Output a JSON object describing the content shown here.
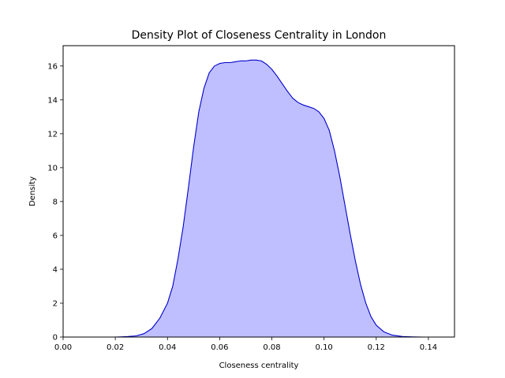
{
  "chart_data": {
    "type": "area",
    "title": "Density Plot of Closeness Centrality in London",
    "xlabel": "Closeness centrality",
    "ylabel": "Density",
    "xlim": [
      0.0,
      0.15
    ],
    "ylim": [
      0,
      17.2
    ],
    "xticks": [
      0.0,
      0.02,
      0.04,
      0.06,
      0.08,
      0.1,
      0.12,
      0.14
    ],
    "xtick_labels": [
      "0.00",
      "0.02",
      "0.04",
      "0.06",
      "0.08",
      "0.10",
      "0.12",
      "0.14"
    ],
    "yticks": [
      0,
      2,
      4,
      6,
      8,
      10,
      12,
      14,
      16
    ],
    "ytick_labels": [
      "0",
      "2",
      "4",
      "6",
      "8",
      "10",
      "12",
      "14",
      "16"
    ],
    "grid": false,
    "series": [
      {
        "line_color": "#0000cc",
        "fill_color": "#bfbfff",
        "x": [
          0.0197,
          0.022,
          0.025,
          0.028,
          0.031,
          0.034,
          0.037,
          0.04,
          0.042,
          0.044,
          0.046,
          0.048,
          0.05,
          0.052,
          0.054,
          0.056,
          0.058,
          0.06,
          0.062,
          0.064,
          0.066,
          0.068,
          0.07,
          0.072,
          0.074,
          0.076,
          0.078,
          0.08,
          0.082,
          0.084,
          0.086,
          0.088,
          0.09,
          0.092,
          0.094,
          0.096,
          0.098,
          0.1,
          0.102,
          0.104,
          0.106,
          0.108,
          0.11,
          0.112,
          0.114,
          0.116,
          0.118,
          0.12,
          0.123,
          0.126,
          0.13,
          0.134,
          0.138,
          0.1402
        ],
        "y": [
          0.0,
          0.01,
          0.03,
          0.07,
          0.2,
          0.5,
          1.1,
          2.0,
          3.0,
          4.6,
          6.5,
          8.8,
          11.2,
          13.3,
          14.7,
          15.6,
          16.0,
          16.15,
          16.2,
          16.2,
          16.25,
          16.3,
          16.3,
          16.35,
          16.35,
          16.3,
          16.1,
          15.8,
          15.4,
          14.95,
          14.5,
          14.1,
          13.85,
          13.7,
          13.6,
          13.5,
          13.3,
          12.9,
          12.2,
          11.0,
          9.5,
          7.8,
          6.1,
          4.5,
          3.1,
          2.0,
          1.2,
          0.7,
          0.3,
          0.12,
          0.03,
          0.01,
          0.0,
          0.0
        ]
      }
    ]
  }
}
